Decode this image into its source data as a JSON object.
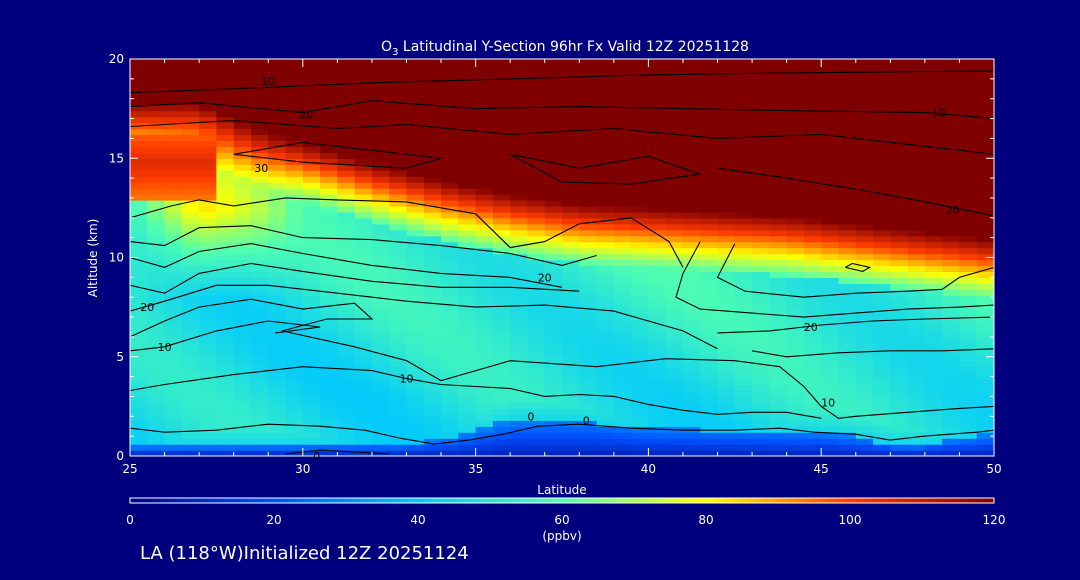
{
  "chart_data": {
    "type": "heatmap",
    "title_prefix": "O",
    "title_subscript": "3",
    "title_rest": " Latitudinal Y-Section 96hr  Fx Valid 12Z 20251128",
    "xlabel": "Latitude",
    "ylabel": "Altitude (km)",
    "xlim": [
      25,
      50
    ],
    "ylim": [
      0,
      20
    ],
    "x_ticks": [
      "25",
      "30",
      "35",
      "40",
      "45",
      "50"
    ],
    "y_ticks": [
      "0",
      "5",
      "10",
      "15",
      "20"
    ],
    "variable": "O3",
    "units": "ppbv",
    "colorbar": {
      "range": [
        0,
        120
      ],
      "ticks": [
        "0",
        "20",
        "40",
        "60",
        "80",
        "100",
        "120"
      ],
      "label": "(ppbv)"
    },
    "colormap": [
      {
        "v": 0,
        "c": "#00008f"
      },
      {
        "v": 20,
        "c": "#0050ff"
      },
      {
        "v": 40,
        "c": "#00c8ff"
      },
      {
        "v": 60,
        "c": "#50ffb0"
      },
      {
        "v": 80,
        "c": "#ffff00"
      },
      {
        "v": 100,
        "c": "#ff3c00"
      },
      {
        "v": 120,
        "c": "#800000"
      }
    ],
    "contour_labels": [
      {
        "text": "10",
        "lat": 33.0,
        "alt": 3.9
      },
      {
        "text": "10",
        "lat": 26.0,
        "alt": 5.5
      },
      {
        "text": "20",
        "lat": 25.5,
        "alt": 7.5
      },
      {
        "text": "20",
        "lat": 37.0,
        "alt": 9.0
      },
      {
        "text": "20",
        "lat": 44.7,
        "alt": 6.5
      },
      {
        "text": "10",
        "lat": 45.2,
        "alt": 2.7
      },
      {
        "text": "0",
        "lat": 36.6,
        "alt": 2.0
      },
      {
        "text": "0",
        "lat": 38.2,
        "alt": 1.8
      },
      {
        "text": "0",
        "lat": 30.4,
        "alt": 0.0
      },
      {
        "text": "30",
        "lat": 28.8,
        "alt": 14.5
      },
      {
        "text": "20",
        "lat": 30.1,
        "alt": 17.2
      },
      {
        "text": "10",
        "lat": 29.0,
        "alt": 18.9
      },
      {
        "text": "10",
        "lat": 48.4,
        "alt": 17.3
      },
      {
        "text": "20",
        "lat": 48.8,
        "alt": 12.4
      }
    ],
    "contours": [
      [
        [
          25,
          18.3
        ],
        [
          28,
          18.5
        ],
        [
          32,
          18.8
        ],
        [
          36,
          19.0
        ],
        [
          40,
          19.2
        ],
        [
          44,
          19.3
        ],
        [
          50,
          19.4
        ]
      ],
      [
        [
          25,
          17.6
        ],
        [
          27,
          17.8
        ],
        [
          30,
          17.3
        ],
        [
          32,
          17.9
        ],
        [
          35,
          17.5
        ],
        [
          38,
          17.6
        ],
        [
          41,
          17.5
        ],
        [
          44,
          17.4
        ],
        [
          48,
          17.3
        ],
        [
          50,
          17.0
        ]
      ],
      [
        [
          25,
          16.6
        ],
        [
          28,
          16.9
        ],
        [
          31,
          16.5
        ],
        [
          33,
          16.7
        ],
        [
          36,
          16.2
        ],
        [
          39,
          16.5
        ],
        [
          42,
          16.0
        ],
        [
          45,
          16.2
        ],
        [
          48,
          15.6
        ],
        [
          50,
          15.2
        ]
      ],
      [
        [
          28,
          15.2
        ],
        [
          30,
          15.8
        ],
        [
          32,
          15.4
        ],
        [
          34,
          15.0
        ],
        [
          33,
          14.5
        ],
        [
          30,
          14.8
        ],
        [
          28,
          15.2
        ]
      ],
      [
        [
          36,
          15.2
        ],
        [
          38,
          14.5
        ],
        [
          40,
          15.1
        ],
        [
          41.5,
          14.2
        ],
        [
          39.5,
          13.7
        ],
        [
          37.5,
          13.8
        ],
        [
          36,
          15.2
        ]
      ],
      [
        [
          42,
          14.5
        ],
        [
          44,
          14.0
        ],
        [
          46.5,
          13.3
        ],
        [
          48,
          12.8
        ],
        [
          50,
          12.1
        ]
      ],
      [
        [
          25,
          12.0
        ],
        [
          26.2,
          12.6
        ],
        [
          27,
          12.9
        ],
        [
          28,
          12.6
        ],
        [
          29.5,
          13.0
        ],
        [
          31,
          12.9
        ],
        [
          33,
          12.8
        ],
        [
          35,
          12.2
        ]
      ],
      [
        [
          35,
          12.2
        ],
        [
          36,
          10.5
        ],
        [
          37,
          10.8
        ],
        [
          38,
          11.7
        ],
        [
          39.5,
          12.0
        ],
        [
          40.6,
          10.8
        ],
        [
          41,
          9.5
        ]
      ],
      [
        [
          25,
          10.8
        ],
        [
          26,
          10.6
        ],
        [
          27,
          11.5
        ],
        [
          28.5,
          11.6
        ],
        [
          30,
          11.0
        ],
        [
          32,
          10.9
        ],
        [
          34,
          10.6
        ],
        [
          36,
          10.2
        ],
        [
          37.5,
          9.6
        ],
        [
          38.5,
          10.1
        ]
      ],
      [
        [
          25,
          10.0
        ],
        [
          26,
          9.5
        ],
        [
          27,
          10.3
        ],
        [
          28.5,
          10.7
        ],
        [
          30,
          10.2
        ],
        [
          32,
          9.6
        ],
        [
          34,
          9.2
        ],
        [
          36,
          9.0
        ],
        [
          37.5,
          8.5
        ]
      ],
      [
        [
          25,
          8.6
        ],
        [
          26,
          8.2
        ],
        [
          27,
          9.2
        ],
        [
          28.5,
          9.7
        ],
        [
          30,
          9.3
        ],
        [
          32,
          8.8
        ],
        [
          34,
          8.5
        ],
        [
          36,
          8.5
        ],
        [
          38,
          8.3
        ]
      ],
      [
        [
          25,
          7.3
        ],
        [
          26,
          7.8
        ],
        [
          27.5,
          8.6
        ],
        [
          29,
          8.6
        ],
        [
          31,
          8.2
        ],
        [
          33,
          7.8
        ],
        [
          35,
          7.5
        ],
        [
          37,
          7.6
        ],
        [
          39,
          7.3
        ],
        [
          41,
          6.3
        ],
        [
          42,
          5.4
        ]
      ],
      [
        [
          25,
          6.0
        ],
        [
          26,
          6.8
        ],
        [
          27,
          7.5
        ],
        [
          28.5,
          7.9
        ],
        [
          30,
          7.4
        ],
        [
          31.5,
          7.7
        ],
        [
          32,
          6.9
        ],
        [
          30.7,
          6.9
        ],
        [
          29.4,
          6.3
        ],
        [
          31.5,
          5.5
        ],
        [
          33,
          4.8
        ],
        [
          34,
          3.8
        ],
        [
          36,
          4.8
        ],
        [
          38.5,
          4.5
        ],
        [
          40.5,
          4.9
        ],
        [
          42.5,
          4.8
        ],
        [
          43.8,
          4.5
        ]
      ],
      [
        [
          25,
          5.3
        ],
        [
          26,
          5.5
        ],
        [
          27.5,
          6.3
        ],
        [
          29,
          6.8
        ],
        [
          30.5,
          6.5
        ],
        [
          29.2,
          6.2
        ]
      ],
      [
        [
          25,
          3.3
        ],
        [
          26,
          3.6
        ],
        [
          28,
          4.1
        ],
        [
          30,
          4.5
        ],
        [
          32,
          4.3
        ],
        [
          33,
          3.9
        ],
        [
          34,
          3.6
        ],
        [
          35,
          3.5
        ],
        [
          36,
          3.4
        ],
        [
          37,
          3.0
        ],
        [
          38,
          3.1
        ],
        [
          39,
          3.0
        ],
        [
          40,
          2.6
        ],
        [
          41,
          2.3
        ],
        [
          42,
          2.1
        ],
        [
          43,
          2.2
        ],
        [
          44,
          2.2
        ],
        [
          45,
          1.9
        ]
      ],
      [
        [
          25,
          1.4
        ],
        [
          26,
          1.2
        ],
        [
          27.5,
          1.3
        ],
        [
          29,
          1.6
        ],
        [
          30.5,
          1.5
        ],
        [
          31.8,
          1.3
        ],
        [
          32.8,
          0.9
        ],
        [
          33.8,
          0.6
        ],
        [
          34.8,
          0.8
        ],
        [
          35.8,
          1.1
        ],
        [
          36.8,
          1.5
        ],
        [
          38,
          1.6
        ],
        [
          39.5,
          1.4
        ],
        [
          41,
          1.3
        ],
        [
          42.5,
          1.3
        ],
        [
          43.8,
          1.4
        ],
        [
          44.8,
          1.2
        ],
        [
          46,
          1.1
        ],
        [
          47,
          0.8
        ],
        [
          48,
          1.0
        ],
        [
          49.5,
          1.2
        ],
        [
          50,
          1.3
        ]
      ],
      [
        [
          29.5,
          0.1
        ],
        [
          30.5,
          0.3
        ],
        [
          31.5,
          0.2
        ],
        [
          32.5,
          0.1
        ]
      ],
      [
        [
          41.5,
          10.8
        ],
        [
          41,
          9.2
        ],
        [
          40.8,
          8.0
        ],
        [
          41.5,
          7.4
        ],
        [
          43,
          7.2
        ],
        [
          44.5,
          7.0
        ],
        [
          46,
          7.2
        ],
        [
          47.5,
          7.4
        ],
        [
          49,
          7.5
        ],
        [
          50,
          7.6
        ]
      ],
      [
        [
          42.5,
          10.7
        ],
        [
          42,
          9.0
        ],
        [
          42.8,
          8.3
        ],
        [
          44.5,
          8.0
        ],
        [
          46,
          8.2
        ],
        [
          47.5,
          8.3
        ],
        [
          48.5,
          8.4
        ],
        [
          49,
          9.0
        ],
        [
          50,
          9.5
        ]
      ],
      [
        [
          42,
          6.2
        ],
        [
          43.5,
          6.3
        ],
        [
          45,
          6.6
        ],
        [
          46.5,
          6.8
        ],
        [
          48,
          6.9
        ],
        [
          50,
          7.0
        ]
      ],
      [
        [
          43,
          5.3
        ],
        [
          44,
          5.0
        ],
        [
          45.5,
          5.2
        ],
        [
          47,
          5.3
        ],
        [
          48.5,
          5.3
        ],
        [
          50,
          5.4
        ]
      ],
      [
        [
          43.8,
          4.5
        ],
        [
          44.5,
          3.5
        ],
        [
          45,
          2.5
        ],
        [
          45.5,
          1.9
        ],
        [
          46,
          2.0
        ],
        [
          47.5,
          2.2
        ],
        [
          49,
          2.4
        ],
        [
          50,
          2.5
        ]
      ],
      [
        [
          45.7,
          9.5
        ],
        [
          46.2,
          9.3
        ],
        [
          46.4,
          9.5
        ],
        [
          45.9,
          9.7
        ],
        [
          45.7,
          9.5
        ]
      ]
    ]
  },
  "footer": {
    "text": "LA (118°W)Initialized 12Z 20251124"
  }
}
